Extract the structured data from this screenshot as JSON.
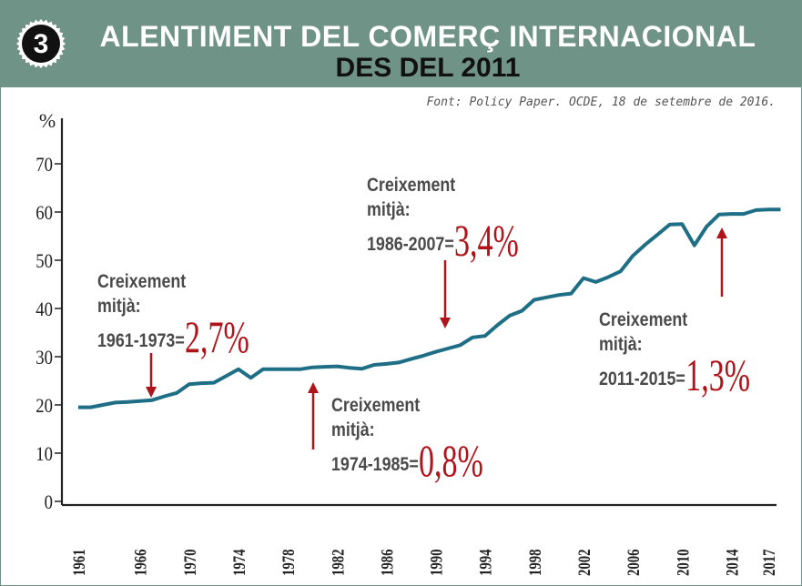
{
  "header": {
    "badge_number": "3",
    "title_line1": "ALENTIMENT DEL COMERÇ INTERNACIONAL",
    "title_line2": "DES DEL 2011",
    "source": "Font: Policy Paper. OCDE, 18 de setembre de 2016."
  },
  "colors": {
    "header_bg": "#6f9387",
    "line": "#1e6f86",
    "arrow": "#b0141b",
    "highlight": "#b0141b"
  },
  "annotations": [
    {
      "line1": "Creixement",
      "line2": "mitjà:",
      "period": "1961-1973=",
      "rate": "2,7%"
    },
    {
      "line1": "Creixement",
      "line2": "mitjà:",
      "period": "1974-1985=",
      "rate": "0,8%"
    },
    {
      "line1": "Creixement",
      "line2": "mitjà:",
      "period": "1986-2007=",
      "rate": "3,4%"
    },
    {
      "line1": "Creixement",
      "line2": "mitjà:",
      "period": "2011-2015=",
      "rate": "1,3%"
    }
  ],
  "chart_data": {
    "type": "line",
    "ylabel": "%",
    "ylim": [
      0,
      70
    ],
    "yticks": [
      "0",
      "10",
      "20",
      "30",
      "40",
      "50",
      "60",
      "70"
    ],
    "xlim": [
      1961,
      2018
    ],
    "xticks": [
      "1961",
      "1966",
      "1970",
      "1974",
      "1978",
      "1982",
      "1986",
      "1990",
      "1994",
      "1998",
      "2002",
      "2006",
      "2010",
      "2014",
      "2017"
    ],
    "grid": false,
    "series": [
      {
        "x": [
          1961,
          1962,
          1963,
          1964,
          1965,
          1966,
          1967,
          1968,
          1969,
          1970,
          1971,
          1972,
          1973,
          1974,
          1975,
          1976,
          1977,
          1978,
          1979,
          1980,
          1981,
          1982,
          1983,
          1984,
          1985,
          1986,
          1987,
          1988,
          1989,
          1990,
          1991,
          1992,
          1993,
          1994,
          1995,
          1996,
          1997,
          1998,
          1999,
          2000,
          2001,
          2002,
          2003,
          2004,
          2005,
          2006,
          2007,
          2008,
          2009,
          2010,
          2011,
          2012,
          2013,
          2014,
          2015,
          2016,
          2017,
          2018
        ],
        "values": [
          19.5,
          19.5,
          20.0,
          20.5,
          20.6,
          20.8,
          21.0,
          21.8,
          22.5,
          24.3,
          24.5,
          24.6,
          26.0,
          27.4,
          25.6,
          27.4,
          27.4,
          27.4,
          27.4,
          27.8,
          27.9,
          28.0,
          27.7,
          27.5,
          28.3,
          28.5,
          28.8,
          29.5,
          30.2,
          31.0,
          31.7,
          32.4,
          34.0,
          34.3,
          36.5,
          38.5,
          39.5,
          41.8,
          42.3,
          42.8,
          43.1,
          46.3,
          45.5,
          46.5,
          47.7,
          50.9,
          53.2,
          55.3,
          57.4,
          57.5,
          53.1,
          57.0,
          59.5,
          59.6,
          59.6,
          60.4,
          60.5,
          60.5
        ]
      }
    ]
  }
}
